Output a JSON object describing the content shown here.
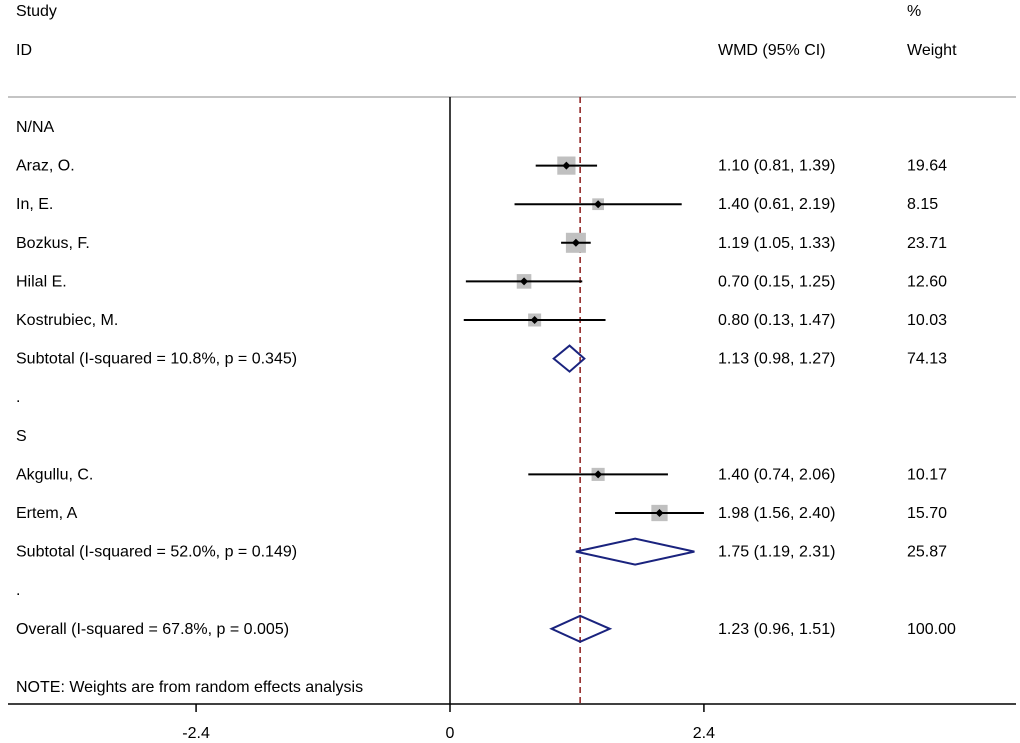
{
  "chart_data": {
    "type": "forest",
    "measure": "WMD",
    "header": {
      "study_line1": "Study",
      "study_line2": "ID",
      "ci_label": "WMD (95% CI)",
      "weight_line1": "%",
      "weight_line2": "Weight"
    },
    "xlim": [
      -4.2,
      5.4
    ],
    "ticks": [
      {
        "value": -2.4,
        "label": "-2.4"
      },
      {
        "value": 0,
        "label": "0"
      },
      {
        "value": 2.4,
        "label": "2.4"
      }
    ],
    "overall_effect": 1.23,
    "rows": [
      {
        "kind": "group",
        "label": "N/NA"
      },
      {
        "kind": "study",
        "label": "Araz, O.",
        "est": 1.1,
        "lo": 0.81,
        "hi": 1.39,
        "weight": 19.64,
        "ci_text": "1.10 (0.81, 1.39)",
        "weight_text": "19.64"
      },
      {
        "kind": "study",
        "label": "In, E.",
        "est": 1.4,
        "lo": 0.61,
        "hi": 2.19,
        "weight": 8.15,
        "ci_text": "1.40 (0.61, 2.19)",
        "weight_text": "8.15"
      },
      {
        "kind": "study",
        "label": "Bozkus, F.",
        "est": 1.19,
        "lo": 1.05,
        "hi": 1.33,
        "weight": 23.71,
        "ci_text": "1.19 (1.05, 1.33)",
        "weight_text": "23.71"
      },
      {
        "kind": "study",
        "label": "Hilal E.",
        "est": 0.7,
        "lo": 0.15,
        "hi": 1.25,
        "weight": 12.6,
        "ci_text": "0.70 (0.15, 1.25)",
        "weight_text": "12.60"
      },
      {
        "kind": "study",
        "label": "Kostrubiec, M.",
        "est": 0.8,
        "lo": 0.13,
        "hi": 1.47,
        "weight": 10.03,
        "ci_text": "0.80 (0.13, 1.47)",
        "weight_text": "10.03"
      },
      {
        "kind": "subtotal",
        "label": "Subtotal  (I-squared = 10.8%, p = 0.345)",
        "est": 1.13,
        "lo": 0.98,
        "hi": 1.27,
        "weight": 74.13,
        "ci_text": "1.13 (0.98, 1.27)",
        "weight_text": "74.13"
      },
      {
        "kind": "spacer",
        "label": "."
      },
      {
        "kind": "group",
        "label": "S"
      },
      {
        "kind": "study",
        "label": "Akgullu, C.",
        "est": 1.4,
        "lo": 0.74,
        "hi": 2.06,
        "weight": 10.17,
        "ci_text": "1.40 (0.74, 2.06)",
        "weight_text": "10.17"
      },
      {
        "kind": "study",
        "label": "Ertem, A",
        "est": 1.98,
        "lo": 1.56,
        "hi": 2.4,
        "weight": 15.7,
        "ci_text": "1.98 (1.56, 2.40)",
        "weight_text": "15.70"
      },
      {
        "kind": "subtotal",
        "label": "Subtotal  (I-squared = 52.0%, p = 0.149)",
        "est": 1.75,
        "lo": 1.19,
        "hi": 2.31,
        "weight": 25.87,
        "ci_text": "1.75 (1.19, 2.31)",
        "weight_text": "25.87"
      },
      {
        "kind": "spacer",
        "label": "."
      },
      {
        "kind": "overall",
        "label": "Overall  (I-squared = 67.8%, p = 0.005)",
        "est": 1.23,
        "lo": 0.96,
        "hi": 1.51,
        "weight": 100.0,
        "ci_text": "1.23 (0.96, 1.51)",
        "weight_text": "100.00"
      }
    ],
    "note": "NOTE: Weights are from random effects analysis",
    "colors": {
      "ink": "#000000",
      "box": "#c0c0c0",
      "diamond": "#1a237e",
      "ref_line": "#8b1a1a",
      "separator": "#b0b0b0"
    }
  }
}
